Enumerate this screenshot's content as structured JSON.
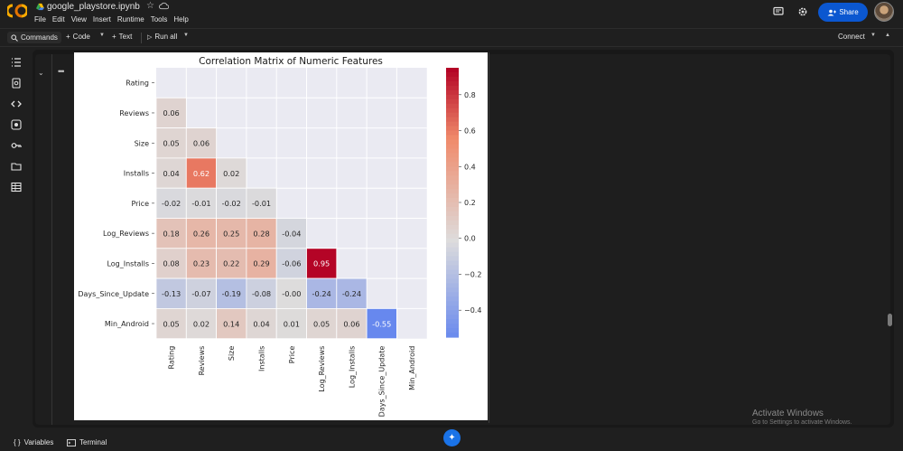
{
  "app": {
    "notebook_title": "google_playstore.ipynb",
    "share_label": "Share"
  },
  "menu": [
    "File",
    "Edit",
    "View",
    "Insert",
    "Runtime",
    "Tools",
    "Help"
  ],
  "toolbar": {
    "commands_label": "Commands",
    "code_label": "Code",
    "text_label": "Text",
    "run_all_label": "Run all",
    "connect_label": "Connect"
  },
  "statusbar": {
    "variables_label": "Variables",
    "terminal_label": "Terminal"
  },
  "watermark": {
    "title": "Activate Windows",
    "subtitle": "Go to Settings to activate Windows."
  },
  "colors": {
    "accent": "#0b57d0",
    "cmap_low": "#3b4cc0",
    "cmap_mid": "#dddddd",
    "cmap_high": "#b40426"
  },
  "chart_data": {
    "type": "heatmap",
    "title": "Correlation Matrix of Numeric Features",
    "labels": [
      "Rating",
      "Reviews",
      "Size",
      "Installs",
      "Price",
      "Log_Reviews",
      "Log_Installs",
      "Days_Since_Update",
      "Min_Android"
    ],
    "lower_triangle": [
      [],
      [
        "0.06"
      ],
      [
        "0.05",
        "0.06"
      ],
      [
        "0.04",
        "0.62",
        "0.02"
      ],
      [
        "-0.02",
        "-0.01",
        "-0.02",
        "-0.01"
      ],
      [
        "0.18",
        "0.26",
        "0.25",
        "0.28",
        "-0.04"
      ],
      [
        "0.08",
        "0.23",
        "0.22",
        "0.29",
        "-0.06",
        "0.95"
      ],
      [
        "-0.13",
        "-0.07",
        "-0.19",
        "-0.08",
        "-0.00",
        "-0.24",
        "-0.24"
      ],
      [
        "0.05",
        "0.02",
        "0.14",
        "0.04",
        "0.01",
        "0.05",
        "0.06",
        "-0.55"
      ]
    ],
    "colorbar": {
      "vmin": -0.55,
      "vmax": 0.95,
      "ticks": [
        "0.8",
        "0.6",
        "0.4",
        "0.2",
        "0.0",
        "−0.2",
        "−0.4"
      ],
      "tick_values": [
        0.8,
        0.6,
        0.4,
        0.2,
        0.0,
        -0.2,
        -0.4
      ]
    },
    "masked": "upper-triangle"
  }
}
